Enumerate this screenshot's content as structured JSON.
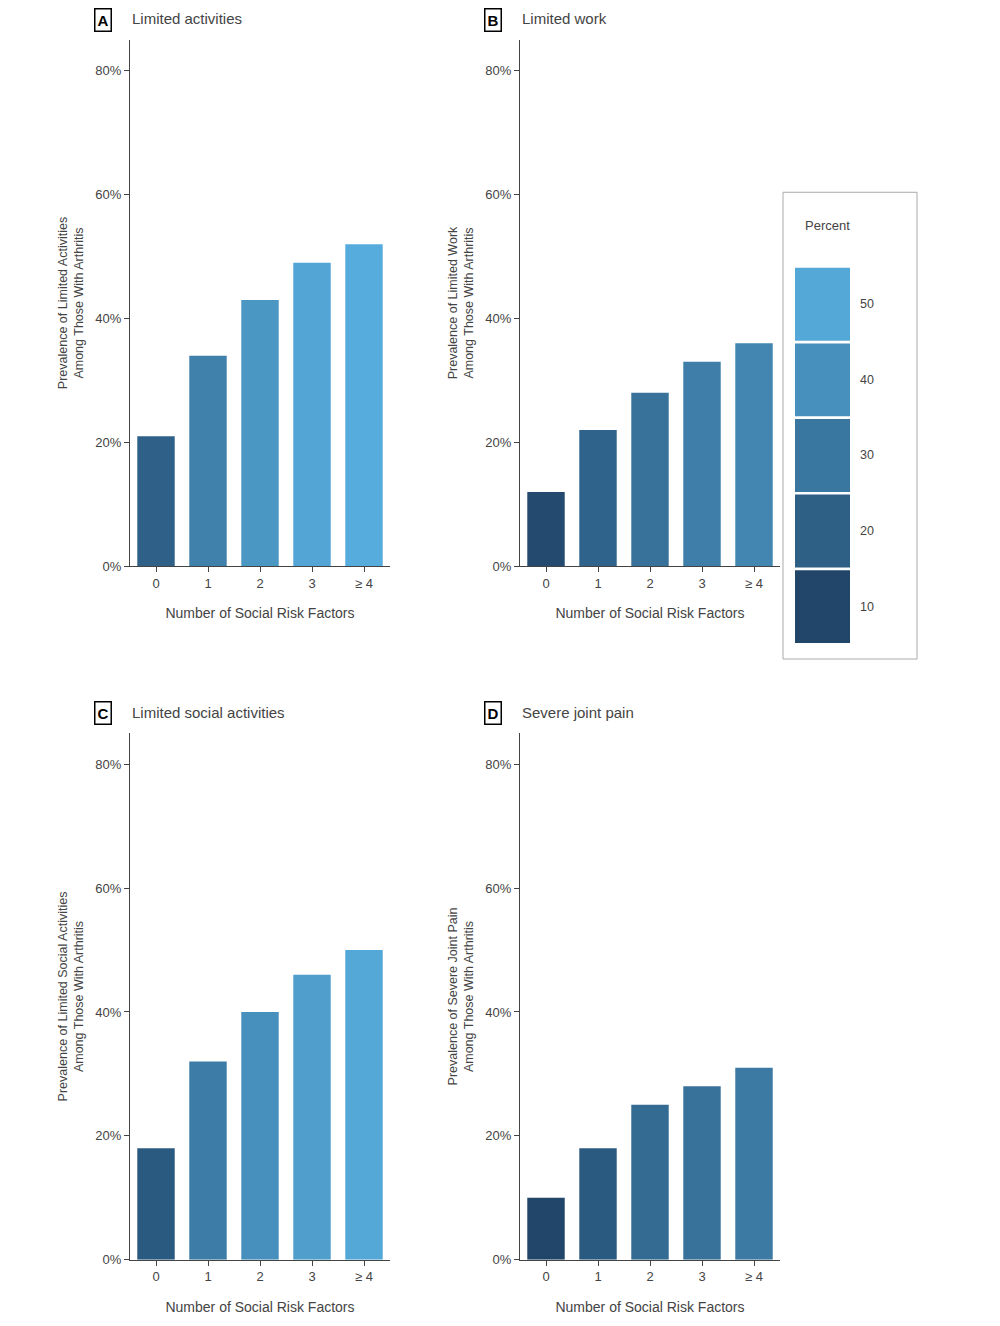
{
  "chart_data": [
    {
      "type": "bar",
      "label": "A",
      "title": "Limited activities",
      "ylabel": "Prevalence of Limited Activities\nAmong Those With Arthritis",
      "xlabel": "Number of Social Risk Factors",
      "categories": [
        "0",
        "1",
        "2",
        "3",
        "≥ 4"
      ],
      "values": [
        0.21,
        0.34,
        0.43,
        0.49,
        0.52
      ],
      "colors": [
        "#2f6188",
        "#4081ab",
        "#4b97c4",
        "#52a5d5",
        "#56addd"
      ],
      "ylim": [
        0,
        0.85
      ],
      "yticks": [
        {
          "value": 0.0,
          "label": "0%"
        },
        {
          "value": 0.2,
          "label": "20%"
        },
        {
          "value": 0.4,
          "label": "40%"
        },
        {
          "value": 0.6,
          "label": "60%"
        },
        {
          "value": 0.8,
          "label": "80%"
        }
      ],
      "grid": false
    },
    {
      "type": "bar",
      "label": "B",
      "title": "Limited work",
      "ylabel": "Prevalence of Limited Work\nAmong Those With Arthritis",
      "xlabel": "Number of Social Risk Factors",
      "categories": [
        "0",
        "1",
        "2",
        "3",
        "≥ 4"
      ],
      "values": [
        0.12,
        0.22,
        0.28,
        0.33,
        0.36
      ],
      "colors": [
        "#244b6f",
        "#30638b",
        "#38729b",
        "#3e7ea9",
        "#4286b1"
      ],
      "ylim": [
        0,
        0.85
      ],
      "yticks": [
        {
          "value": 0.0,
          "label": "0%"
        },
        {
          "value": 0.2,
          "label": "20%"
        },
        {
          "value": 0.4,
          "label": "40%"
        },
        {
          "value": 0.6,
          "label": "60%"
        },
        {
          "value": 0.8,
          "label": "80%"
        }
      ],
      "grid": false
    },
    {
      "type": "bar",
      "label": "C",
      "title": "Limited social activities",
      "ylabel": "Prevalence of Limited Social Activities\nAmong Those With Arthritis",
      "xlabel": "Number of Social Risk Factors",
      "categories": [
        "0",
        "1",
        "2",
        "3",
        "≥ 4"
      ],
      "values": [
        0.18,
        0.32,
        0.4,
        0.46,
        0.5
      ],
      "colors": [
        "#2b5a80",
        "#3d7ca6",
        "#478fbc",
        "#4f9ecc",
        "#54a8d7"
      ],
      "ylim": [
        0,
        0.85
      ],
      "yticks": [
        {
          "value": 0.0,
          "label": "0%"
        },
        {
          "value": 0.2,
          "label": "20%"
        },
        {
          "value": 0.4,
          "label": "40%"
        },
        {
          "value": 0.6,
          "label": "60%"
        },
        {
          "value": 0.8,
          "label": "80%"
        }
      ],
      "grid": false
    },
    {
      "type": "bar",
      "label": "D",
      "title": "Severe joint pain",
      "ylabel": "Prevalence of Severe Joint Pain\nAmong Those With Arthritis",
      "xlabel": "Number of Social Risk Factors",
      "categories": [
        "0",
        "1",
        "2",
        "3",
        "≥ 4"
      ],
      "values": [
        0.1,
        0.18,
        0.25,
        0.28,
        0.31
      ],
      "colors": [
        "#21466a",
        "#2b5a80",
        "#346b93",
        "#38729b",
        "#3c79a3"
      ],
      "ylim": [
        0,
        0.85
      ],
      "yticks": [
        {
          "value": 0.0,
          "label": "0%"
        },
        {
          "value": 0.2,
          "label": "20%"
        },
        {
          "value": 0.4,
          "label": "40%"
        },
        {
          "value": 0.6,
          "label": "60%"
        },
        {
          "value": 0.8,
          "label": "80%"
        }
      ],
      "grid": false
    }
  ],
  "color_legend": {
    "title": "Percent",
    "values": [
      50,
      40,
      30,
      20,
      10
    ],
    "colors": [
      "#54a8d7",
      "#478fbc",
      "#3a77a0",
      "#2e5f85",
      "#21466a"
    ]
  }
}
